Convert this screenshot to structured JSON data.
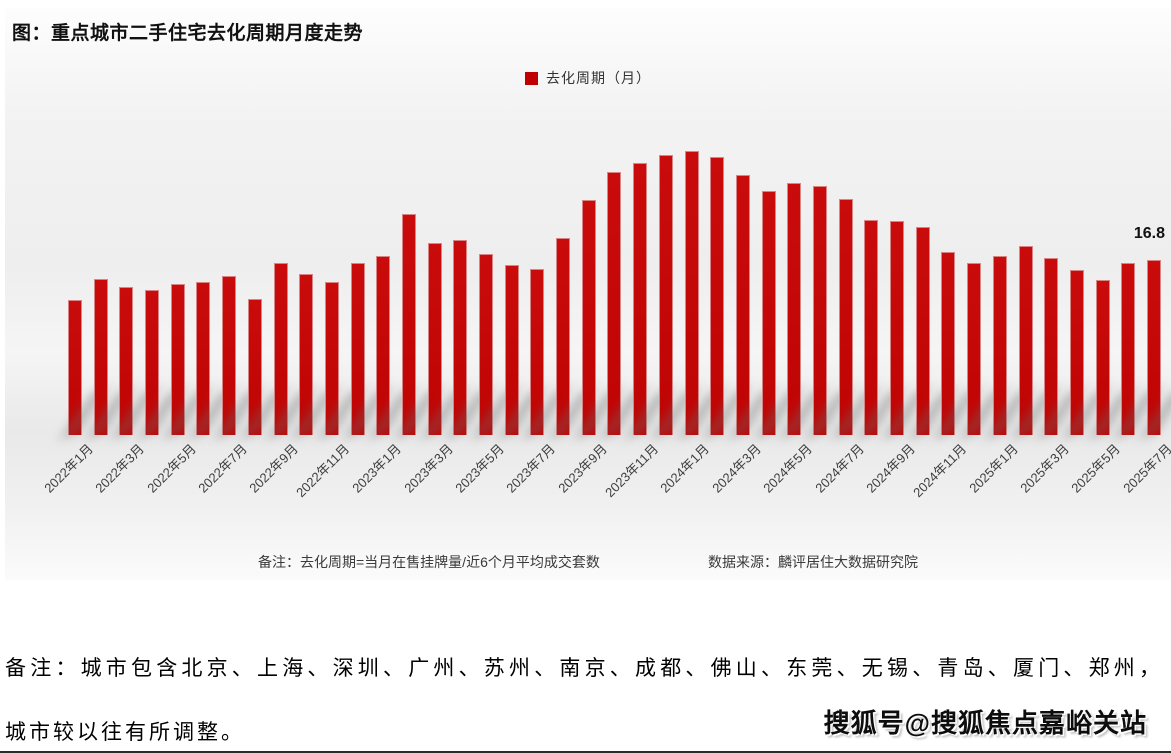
{
  "header": {
    "title": "图：重点城市二手住宅去化周期月度走势"
  },
  "legend": {
    "label": "去化周期（月）",
    "swatch_color": "#c00000"
  },
  "colors": {
    "bar": "#c00505",
    "bar_edge": "#d98585",
    "legend_square": "#c00000",
    "panel_background": "#f0f0f0",
    "text": "#111111"
  },
  "chart_data": {
    "type": "bar",
    "title": "图：重点城市二手住宅去化周期月度走势",
    "legend_entries": [
      "去化周期（月）"
    ],
    "legend_position": "top-center",
    "grid": false,
    "ylabel": "去化周期（月）",
    "xlabel": "",
    "ylim": [
      0,
      30
    ],
    "categories": [
      "2022年1月",
      "2022年2月",
      "2022年3月",
      "2022年4月",
      "2022年5月",
      "2022年6月",
      "2022年7月",
      "2022年8月",
      "2022年9月",
      "2022年10月",
      "2022年11月",
      "2022年12月",
      "2023年1月",
      "2023年2月",
      "2023年3月",
      "2023年4月",
      "2023年5月",
      "2023年6月",
      "2023年7月",
      "2023年8月",
      "2023年9月",
      "2023年10月",
      "2023年11月",
      "2023年12月",
      "2024年1月",
      "2024年2月",
      "2024年3月",
      "2024年4月",
      "2024年5月",
      "2024年6月",
      "2024年7月",
      "2024年8月",
      "2024年9月",
      "2024年10月",
      "2024年11月",
      "2024年12月",
      "2025年1月",
      "2025年2月",
      "2025年3月",
      "2025年4月",
      "2025年5月",
      "2025年6月",
      "2025年7月"
    ],
    "values": [
      13.0,
      15.0,
      14.2,
      13.9,
      14.5,
      14.7,
      15.3,
      13.1,
      16.5,
      15.5,
      14.7,
      16.5,
      17.2,
      21.2,
      18.4,
      18.7,
      17.4,
      16.3,
      15.9,
      18.9,
      22.6,
      25.2,
      26.1,
      26.9,
      27.3,
      26.7,
      25.0,
      23.4,
      24.2,
      23.9,
      22.7,
      20.6,
      20.5,
      20.0,
      17.6,
      16.5,
      17.2,
      18.1,
      17.0,
      15.8,
      14.9,
      16.5,
      16.8
    ],
    "tick_labels": [
      "2022年1月",
      "2022年3月",
      "2022年5月",
      "2022年7月",
      "2022年9月",
      "2022年11月",
      "2023年1月",
      "2023年3月",
      "2023年5月",
      "2023年7月",
      "2023年9月",
      "2023年11月",
      "2024年1月",
      "2024年3月",
      "2024年5月",
      "2024年7月",
      "2024年9月",
      "2024年11月",
      "2025年1月",
      "2025年3月",
      "2025年5月",
      "2025年7月"
    ],
    "data_labels": {
      "last_point": "16.8"
    }
  },
  "footnotes": {
    "definition": "备注：去化周期=当月在售挂牌量/近6个月平均成交套数",
    "source": "数据来源：麟评居住大数据研究院"
  },
  "bottom_notes": {
    "line1": "备注：城市包含北京、上海、深圳、广州、苏州、南京、成都、佛山、东莞、无锡、青岛、厦门、郑州，",
    "line2": "城市较以往有所调整。"
  },
  "watermark": {
    "text": "搜狐号@搜狐焦点嘉峪关站"
  }
}
